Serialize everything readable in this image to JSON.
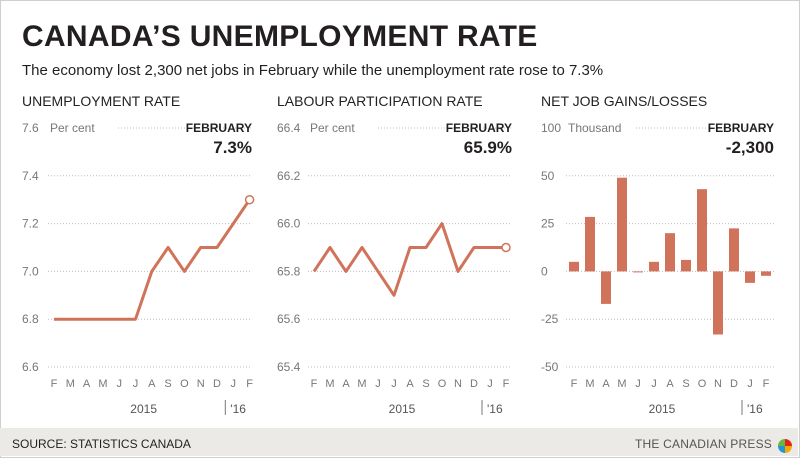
{
  "title": "CANADA’S UNEMPLOYMENT RATE",
  "subtitle": "The economy lost 2,300 net jobs in February while the unemployment rate rose to 7.3%",
  "footer": {
    "source": "SOURCE: STATISTICS CANADA",
    "credit": "THE CANADIAN PRESS"
  },
  "colors": {
    "accent": "#d0735a",
    "grid": "#bdbdbd",
    "text": "#231f20"
  },
  "chart_data": [
    {
      "type": "line",
      "title": "UNEMPLOYMENT RATE",
      "unit": "Per cent",
      "latest_label": "FEBRUARY",
      "latest_value": "7.3%",
      "x": [
        "F",
        "M",
        "A",
        "M",
        "J",
        "J",
        "A",
        "S",
        "O",
        "N",
        "D",
        "J",
        "F"
      ],
      "year_labels": [
        "2015",
        "'16"
      ],
      "values": [
        6.8,
        6.8,
        6.8,
        6.8,
        6.8,
        6.8,
        7.0,
        7.1,
        7.0,
        7.1,
        7.1,
        7.2,
        7.3
      ],
      "ylim": [
        6.6,
        7.6
      ],
      "yticks": [
        6.6,
        6.8,
        7.0,
        7.2,
        7.4,
        7.6
      ],
      "ytick_labels": [
        "6.6",
        "6.8",
        "7.0",
        "7.2",
        "7.4",
        "7.6"
      ],
      "grid": true,
      "legend": "none"
    },
    {
      "type": "line",
      "title": "LABOUR PARTICIPATION RATE",
      "unit": "Per cent",
      "latest_label": "FEBRUARY",
      "latest_value": "65.9%",
      "x": [
        "F",
        "M",
        "A",
        "M",
        "J",
        "J",
        "A",
        "S",
        "O",
        "N",
        "D",
        "J",
        "F"
      ],
      "year_labels": [
        "2015",
        "'16"
      ],
      "values": [
        65.8,
        65.9,
        65.8,
        65.9,
        65.8,
        65.7,
        65.9,
        65.9,
        66.0,
        65.8,
        65.9,
        65.9,
        65.9
      ],
      "ylim": [
        65.4,
        66.4
      ],
      "yticks": [
        65.4,
        65.6,
        65.8,
        66.0,
        66.2,
        66.4
      ],
      "ytick_labels": [
        "65.4",
        "65.6",
        "65.8",
        "66.0",
        "66.2",
        "66.4"
      ],
      "grid": true,
      "legend": "none"
    },
    {
      "type": "bar",
      "title": "NET JOB GAINS/LOSSES",
      "unit": "Thousand",
      "latest_label": "FEBRUARY",
      "latest_value": "-2,300",
      "x": [
        "F",
        "M",
        "A",
        "M",
        "J",
        "J",
        "A",
        "S",
        "O",
        "N",
        "D",
        "J",
        "F"
      ],
      "year_labels": [
        "2015",
        "'16"
      ],
      "values": [
        5,
        28.5,
        -17,
        49,
        -0.5,
        5,
        20,
        6,
        43,
        -33,
        22.5,
        -6,
        -2.3
      ],
      "ylim": [
        -50,
        100
      ],
      "yticks": [
        -50,
        -25,
        0,
        25,
        50,
        100
      ],
      "ytick_labels": [
        "-50",
        "-25",
        "0",
        "25",
        "50",
        "100"
      ],
      "grid": true,
      "legend": "none"
    }
  ]
}
